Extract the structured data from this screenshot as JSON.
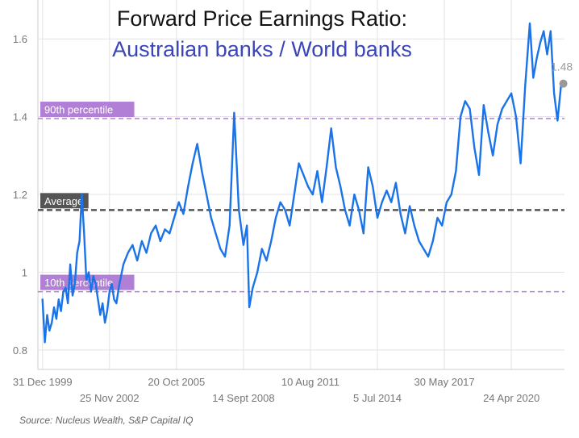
{
  "chart_data": {
    "type": "line",
    "title": "Forward Price Earnings Ratio:",
    "subtitle": "Australian banks / World banks",
    "source": "Source: Nucleus Wealth, S&P Capital IQ",
    "ylim": [
      0.75,
      1.7
    ],
    "yticks": [
      0.8,
      1,
      1.2,
      1.4,
      1.6
    ],
    "ytick_labels": [
      "0.8",
      "1",
      "1.2",
      "1.4",
      "1.6"
    ],
    "xlim": [
      1999.8,
      2022.6
    ],
    "xticks": [
      {
        "label": "31 Dec 1999",
        "x": 2000.0,
        "row": 1
      },
      {
        "label": "25 Nov 2002",
        "x": 2002.9,
        "row": 2
      },
      {
        "label": "20 Oct 2005",
        "x": 2005.8,
        "row": 1
      },
      {
        "label": "14 Sept 2008",
        "x": 2008.7,
        "row": 2
      },
      {
        "label": "10 Aug 2011",
        "x": 2011.6,
        "row": 1
      },
      {
        "label": "5 Jul 2014",
        "x": 2014.5,
        "row": 2
      },
      {
        "label": "30 May 2017",
        "x": 2017.4,
        "row": 1
      },
      {
        "label": "24 Apr 2020",
        "x": 2020.3,
        "row": 2
      }
    ],
    "reference_lines": [
      {
        "name": "90th percentile",
        "label": "90th percentile",
        "value": 1.395,
        "color": "#b27fd6"
      },
      {
        "name": "Average",
        "label": "Average",
        "value": 1.16,
        "color": "#555555"
      },
      {
        "name": "10th percentile",
        "label": "10th percentile",
        "value": 0.95,
        "color": "#b27fd6"
      }
    ],
    "last_value": {
      "label": "1.48",
      "x": 2022.55,
      "y": 1.485
    },
    "series": [
      {
        "name": "Australian banks / World banks",
        "color": "#1a73e8",
        "x": [
          2000.0,
          2000.1,
          2000.2,
          2000.3,
          2000.4,
          2000.5,
          2000.6,
          2000.7,
          2000.8,
          2000.9,
          2001.0,
          2001.1,
          2001.2,
          2001.3,
          2001.4,
          2001.5,
          2001.6,
          2001.7,
          2001.8,
          2001.9,
          2002.0,
          2002.1,
          2002.2,
          2002.3,
          2002.4,
          2002.5,
          2002.6,
          2002.7,
          2002.8,
          2002.9,
          2003.0,
          2003.1,
          2003.2,
          2003.3,
          2003.5,
          2003.7,
          2003.9,
          2004.1,
          2004.3,
          2004.5,
          2004.7,
          2004.9,
          2005.1,
          2005.3,
          2005.5,
          2005.7,
          2005.9,
          2006.1,
          2006.3,
          2006.5,
          2006.7,
          2006.9,
          2007.1,
          2007.3,
          2007.5,
          2007.7,
          2007.9,
          2008.1,
          2008.3,
          2008.5,
          2008.7,
          2008.85,
          2008.95,
          2009.1,
          2009.3,
          2009.5,
          2009.7,
          2009.9,
          2010.1,
          2010.3,
          2010.5,
          2010.7,
          2010.9,
          2011.1,
          2011.3,
          2011.5,
          2011.7,
          2011.9,
          2012.1,
          2012.3,
          2012.5,
          2012.7,
          2012.9,
          2013.1,
          2013.3,
          2013.5,
          2013.7,
          2013.9,
          2014.1,
          2014.3,
          2014.5,
          2014.7,
          2014.9,
          2015.1,
          2015.3,
          2015.5,
          2015.7,
          2015.9,
          2016.1,
          2016.3,
          2016.5,
          2016.7,
          2016.9,
          2017.1,
          2017.3,
          2017.5,
          2017.7,
          2017.9,
          2018.1,
          2018.3,
          2018.5,
          2018.7,
          2018.9,
          2019.1,
          2019.3,
          2019.5,
          2019.7,
          2019.9,
          2020.1,
          2020.3,
          2020.5,
          2020.7,
          2020.9,
          2021.1,
          2021.25,
          2021.4,
          2021.55,
          2021.7,
          2021.85,
          2022.0,
          2022.15,
          2022.3,
          2022.45,
          2022.55
        ],
        "y": [
          0.93,
          0.82,
          0.89,
          0.85,
          0.87,
          0.91,
          0.88,
          0.93,
          0.9,
          0.95,
          0.96,
          0.92,
          1.02,
          0.94,
          0.97,
          1.05,
          1.08,
          1.2,
          1.1,
          0.98,
          1.0,
          0.95,
          0.99,
          0.97,
          0.93,
          0.89,
          0.92,
          0.87,
          0.9,
          0.95,
          0.97,
          0.93,
          0.92,
          0.96,
          1.02,
          1.05,
          1.07,
          1.03,
          1.08,
          1.05,
          1.1,
          1.12,
          1.08,
          1.11,
          1.1,
          1.14,
          1.18,
          1.15,
          1.22,
          1.28,
          1.33,
          1.26,
          1.2,
          1.14,
          1.1,
          1.06,
          1.04,
          1.12,
          1.41,
          1.16,
          1.07,
          1.12,
          0.91,
          0.96,
          1.0,
          1.06,
          1.03,
          1.08,
          1.14,
          1.18,
          1.16,
          1.12,
          1.2,
          1.28,
          1.25,
          1.22,
          1.2,
          1.26,
          1.18,
          1.27,
          1.37,
          1.27,
          1.22,
          1.16,
          1.12,
          1.2,
          1.16,
          1.1,
          1.27,
          1.22,
          1.14,
          1.18,
          1.21,
          1.18,
          1.23,
          1.15,
          1.1,
          1.17,
          1.12,
          1.08,
          1.06,
          1.04,
          1.08,
          1.14,
          1.12,
          1.18,
          1.2,
          1.26,
          1.4,
          1.44,
          1.42,
          1.32,
          1.25,
          1.43,
          1.36,
          1.3,
          1.38,
          1.42,
          1.44,
          1.46,
          1.4,
          1.28,
          1.48,
          1.64,
          1.5,
          1.55,
          1.59,
          1.62,
          1.56,
          1.62,
          1.46,
          1.39,
          1.48,
          1.485
        ]
      }
    ]
  }
}
